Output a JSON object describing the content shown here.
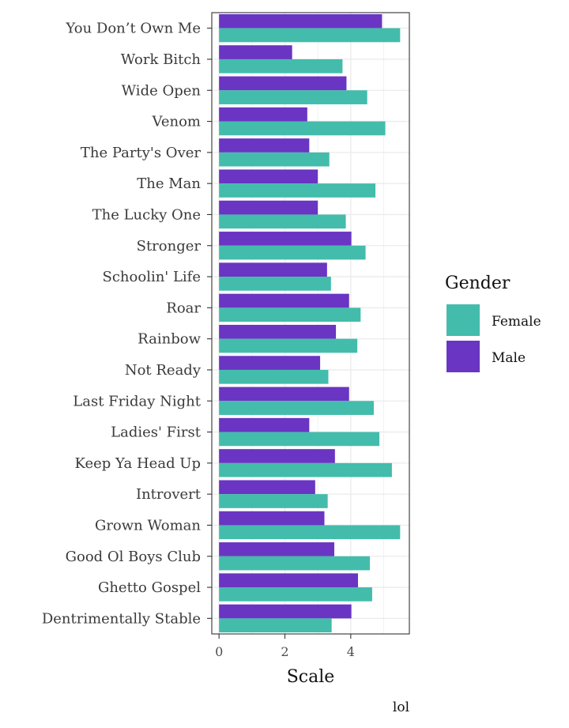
{
  "chart_data": {
    "type": "bar",
    "orientation": "horizontal",
    "categories": [
      "You Don’t Own Me",
      "Work Bitch",
      "Wide Open",
      "Venom",
      "The Party's Over",
      "The Man",
      "The Lucky One",
      "Stronger",
      "Schoolin' Life",
      "Roar",
      "Rainbow",
      "Not Ready",
      "Last Friday Night",
      "Ladies' First",
      "Keep Ya Head Up",
      "Introvert",
      "Grown Woman",
      "Good Ol Boys Club",
      "Ghetto Gospel",
      "Dentrimentally Stable"
    ],
    "series": [
      {
        "name": "Female",
        "color": "#43bcac",
        "values": [
          5.5,
          3.75,
          4.5,
          5.05,
          3.35,
          4.75,
          3.85,
          4.45,
          3.4,
          4.3,
          4.2,
          3.32,
          4.7,
          4.87,
          5.25,
          3.3,
          5.5,
          4.58,
          4.65,
          3.42
        ]
      },
      {
        "name": "Male",
        "color": "#6a35c2",
        "values": [
          4.95,
          2.22,
          3.87,
          2.68,
          2.74,
          3.0,
          3.0,
          4.02,
          3.28,
          3.95,
          3.55,
          3.07,
          3.95,
          2.74,
          3.52,
          2.92,
          3.2,
          3.5,
          4.22,
          4.02
        ]
      }
    ],
    "xlim": [
      -0.22,
      5.78
    ],
    "xticks": [
      0,
      2,
      4
    ],
    "xlabel": "Scale",
    "ylabel": "",
    "legend": {
      "title": "Gender",
      "position": "right",
      "entries": [
        "Female",
        "Male"
      ]
    },
    "caption": "lol",
    "grid": true
  }
}
